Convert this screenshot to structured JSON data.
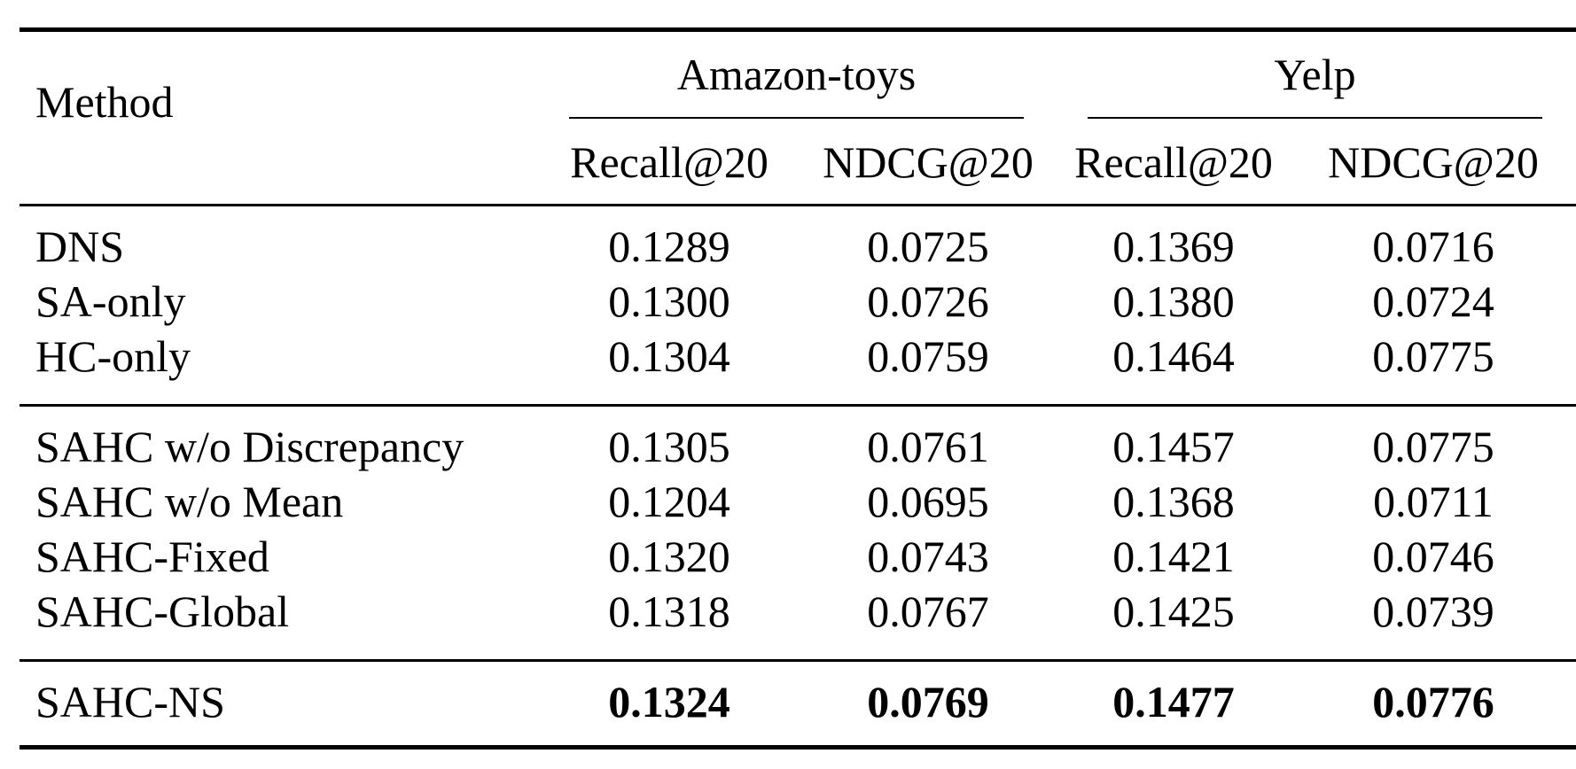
{
  "table": {
    "method_header": "Method",
    "groups": [
      {
        "name": "Amazon-toys",
        "columns": [
          "Recall@20",
          "NDCG@20"
        ]
      },
      {
        "name": "Yelp",
        "columns": [
          "Recall@20",
          "NDCG@20"
        ]
      }
    ],
    "sections": [
      {
        "rows": [
          {
            "method": "DNS",
            "values": [
              "0.1289",
              "0.0725",
              "0.1369",
              "0.0716"
            ]
          },
          {
            "method": "SA-only",
            "values": [
              "0.1300",
              "0.0726",
              "0.1380",
              "0.0724"
            ]
          },
          {
            "method": "HC-only",
            "values": [
              "0.1304",
              "0.0759",
              "0.1464",
              "0.0775"
            ]
          }
        ]
      },
      {
        "rows": [
          {
            "method": "SAHC w/o Discrepancy",
            "values": [
              "0.1305",
              "0.0761",
              "0.1457",
              "0.0775"
            ]
          },
          {
            "method": "SAHC w/o Mean",
            "values": [
              "0.1204",
              "0.0695",
              "0.1368",
              "0.0711"
            ]
          },
          {
            "method": "SAHC-Fixed",
            "values": [
              "0.1320",
              "0.0743",
              "0.1421",
              "0.0746"
            ]
          },
          {
            "method": "SAHC-Global",
            "values": [
              "0.1318",
              "0.0767",
              "0.1425",
              "0.0739"
            ]
          }
        ]
      },
      {
        "rows": [
          {
            "method": "SAHC-NS",
            "values": [
              "0.1324",
              "0.0769",
              "0.1477",
              "0.0776"
            ],
            "bold_values": true
          }
        ]
      }
    ]
  }
}
